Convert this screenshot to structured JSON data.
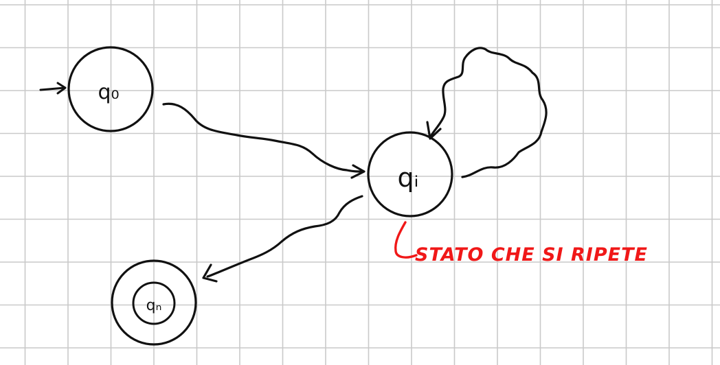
{
  "colors": {
    "background": "#ffffff",
    "grid": "#c9c9c9",
    "ink": "#111111",
    "annotation": "#f01818"
  },
  "states": {
    "start": {
      "label": "q₀"
    },
    "middle": {
      "label": "qᵢ"
    },
    "final": {
      "label": "qₙ"
    }
  },
  "annotation": {
    "text": "STATO CHE SI RIPETE"
  }
}
